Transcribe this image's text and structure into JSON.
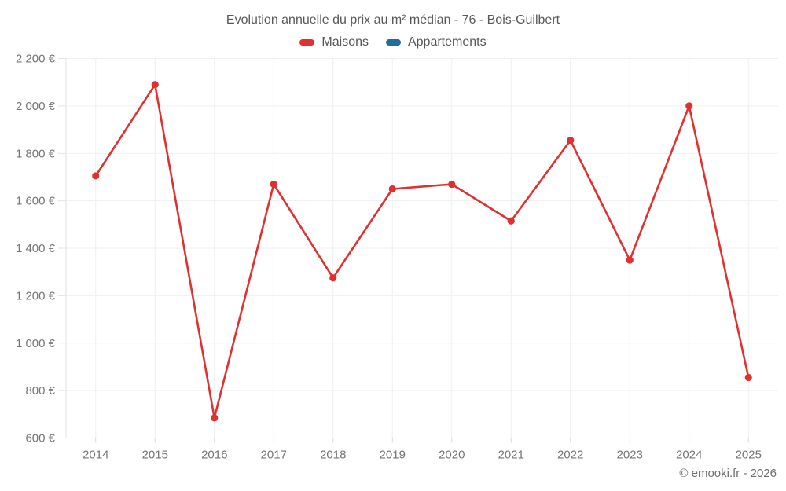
{
  "header": {
    "title": "Evolution annuelle du prix au m² médian - 76 - Bois-Guilbert"
  },
  "legend": {
    "items": [
      {
        "label": "Maisons",
        "color": "#e03131"
      },
      {
        "label": "Appartements",
        "color": "#1f6da3"
      }
    ]
  },
  "footer": {
    "credit": "© emooki.fr - 2026"
  },
  "chart_data": {
    "type": "line",
    "title": "Evolution annuelle du prix au m² médian - 76 - Bois-Guilbert",
    "x": [
      2014,
      2015,
      2016,
      2017,
      2018,
      2019,
      2020,
      2021,
      2022,
      2023,
      2024,
      2025
    ],
    "series": [
      {
        "name": "Maisons",
        "color": "#e03131",
        "values": [
          1705,
          2090,
          685,
          1670,
          1275,
          1650,
          1670,
          1515,
          1855,
          1350,
          2000,
          855
        ]
      },
      {
        "name": "Appartements",
        "color": "#1f6da3",
        "values": []
      }
    ],
    "xlabel": "",
    "ylabel": "",
    "ylim": [
      600,
      2200
    ],
    "ytick_step": 200,
    "ytick_suffix": " €",
    "grid": true,
    "legend_position": "top"
  }
}
